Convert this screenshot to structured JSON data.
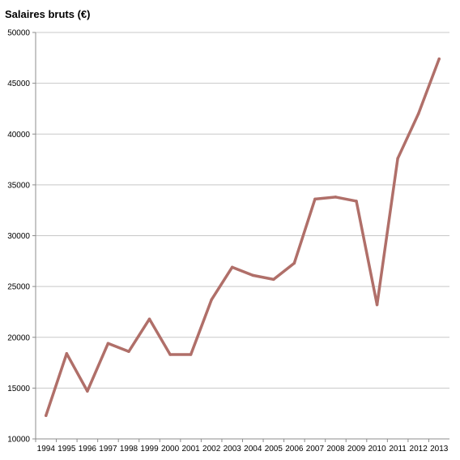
{
  "chart_data": {
    "type": "line",
    "title": "Salaires bruts (€)",
    "xlabel": "",
    "ylabel": "",
    "ylim": [
      10000,
      50000
    ],
    "yticks": [
      10000,
      15000,
      20000,
      25000,
      30000,
      35000,
      40000,
      45000,
      50000
    ],
    "categories": [
      "1994",
      "1995",
      "1996",
      "1997",
      "1998",
      "1999",
      "2000",
      "2001",
      "2002",
      "2003",
      "2004",
      "2005",
      "2006",
      "2007",
      "2008",
      "2009",
      "2010",
      "2011",
      "2012",
      "2013"
    ],
    "series": [
      {
        "values": [
          12300,
          18400,
          14700,
          19400,
          18600,
          21800,
          18300,
          18300,
          23700,
          26900,
          26100,
          25700,
          27300,
          33600,
          33800,
          33400,
          23200,
          37600,
          42000,
          47400
        ],
        "color": "#b06f69"
      }
    ],
    "grid": true,
    "legend": "none"
  }
}
